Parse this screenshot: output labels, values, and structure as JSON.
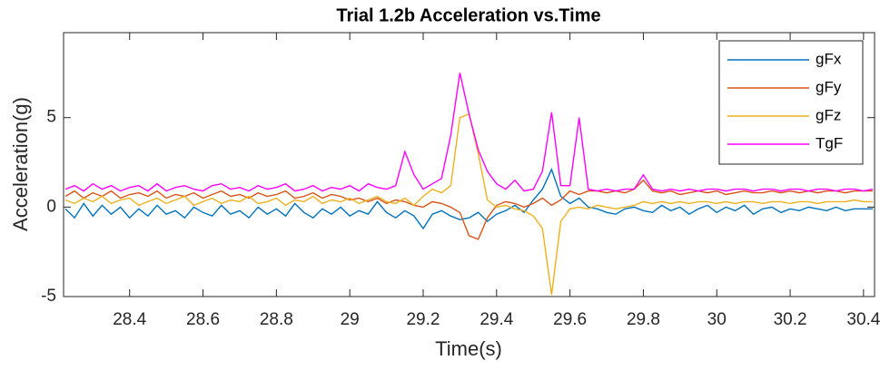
{
  "chart_data": {
    "type": "line",
    "title": "Trial 1.2b Acceleration vs.Time",
    "x_label": "Time(s)",
    "y_label": "Acceleration(g)",
    "x": [
      28.225,
      28.25,
      28.275,
      28.3,
      28.325,
      28.35,
      28.375,
      28.4,
      28.425,
      28.45,
      28.475,
      28.5,
      28.525,
      28.55,
      28.575,
      28.6,
      28.625,
      28.65,
      28.675,
      28.7,
      28.725,
      28.75,
      28.775,
      28.8,
      28.825,
      28.85,
      28.875,
      28.9,
      28.925,
      28.95,
      28.975,
      29,
      29.025,
      29.05,
      29.075,
      29.1,
      29.125,
      29.15,
      29.175,
      29.2,
      29.225,
      29.25,
      29.275,
      29.3,
      29.325,
      29.35,
      29.375,
      29.4,
      29.425,
      29.45,
      29.475,
      29.5,
      29.525,
      29.55,
      29.575,
      29.6,
      29.625,
      29.65,
      29.675,
      29.7,
      29.725,
      29.75,
      29.775,
      29.8,
      29.825,
      29.85,
      29.875,
      29.9,
      29.925,
      29.95,
      29.975,
      30,
      30.025,
      30.05,
      30.075,
      30.1,
      30.125,
      30.15,
      30.175,
      30.2,
      30.225,
      30.25,
      30.275,
      30.3,
      30.325,
      30.35,
      30.375,
      30.4,
      30.425
    ],
    "series": [
      {
        "name": "gFx",
        "color": "#0072bd",
        "values": [
          -0.1,
          -0.6,
          0.2,
          -0.5,
          0.1,
          -0.4,
          0.0,
          -0.6,
          -0.1,
          -0.5,
          0.1,
          -0.4,
          -0.2,
          -0.6,
          0.0,
          -0.3,
          -0.5,
          0.1,
          -0.4,
          -0.2,
          -0.6,
          0.0,
          -0.4,
          -0.1,
          -0.5,
          0.2,
          -0.3,
          -0.6,
          -0.1,
          -0.4,
          0.0,
          -0.5,
          -0.2,
          -0.4,
          0.3,
          -0.3,
          -0.6,
          -0.2,
          -0.5,
          -1.2,
          -0.4,
          -0.2,
          -0.5,
          -0.7,
          -0.6,
          -0.3,
          -0.8,
          -0.4,
          -0.2,
          0.1,
          -0.3,
          0.4,
          1.0,
          2.1,
          0.6,
          0.2,
          0.5,
          0.0,
          -0.1,
          -0.3,
          -0.4,
          -0.1,
          0.0,
          -0.2,
          -0.3,
          0.1,
          -0.2,
          0.0,
          -0.4,
          -0.1,
          0.1,
          -0.3,
          0.0,
          -0.2,
          0.1,
          -0.4,
          -0.1,
          0.0,
          -0.3,
          -0.1,
          -0.2,
          0.0,
          -0.1,
          -0.2,
          0.0,
          -0.2,
          -0.1,
          -0.1,
          -0.1
        ]
      },
      {
        "name": "gFy",
        "color": "#d95319",
        "values": [
          0.6,
          0.9,
          0.5,
          0.8,
          0.6,
          0.9,
          0.5,
          0.7,
          0.8,
          0.6,
          0.9,
          0.5,
          0.7,
          0.6,
          0.8,
          0.5,
          0.7,
          0.9,
          0.6,
          0.7,
          0.5,
          0.8,
          0.6,
          0.7,
          0.9,
          0.5,
          0.6,
          0.8,
          0.5,
          0.7,
          0.6,
          0.4,
          0.5,
          0.3,
          0.5,
          0.2,
          0.4,
          0.3,
          0.1,
          0.0,
          0.3,
          0.2,
          0.0,
          -0.3,
          -1.6,
          -1.8,
          -0.6,
          0.1,
          0.3,
          0.2,
          0.0,
          0.2,
          0.5,
          0.1,
          0.4,
          0.9,
          0.7,
          0.9,
          0.9,
          0.8,
          0.9,
          0.8,
          1.0,
          1.5,
          0.9,
          0.8,
          0.9,
          0.7,
          0.8,
          0.9,
          0.8,
          0.9,
          0.7,
          0.8,
          0.9,
          0.8,
          0.8,
          0.9,
          0.8,
          0.9,
          0.8,
          0.9,
          0.8,
          0.9,
          0.9,
          0.8,
          0.9,
          0.9,
          0.9
        ]
      },
      {
        "name": "gFz",
        "color": "#edb120",
        "values": [
          0.4,
          0.2,
          0.5,
          0.3,
          0.6,
          0.2,
          0.4,
          0.5,
          0.1,
          0.3,
          0.5,
          0.2,
          0.4,
          0.6,
          0.1,
          0.3,
          0.5,
          0.2,
          0.4,
          0.3,
          0.6,
          0.2,
          0.3,
          0.5,
          0.1,
          0.4,
          0.3,
          0.6,
          0.2,
          0.4,
          0.3,
          0.5,
          0.2,
          0.4,
          0.6,
          0.3,
          0.2,
          0.5,
          0.1,
          0.6,
          1.0,
          0.8,
          1.2,
          5.0,
          5.2,
          3.0,
          0.4,
          0.0,
          0.1,
          -0.1,
          -0.2,
          -0.5,
          -1.2,
          -4.9,
          -0.8,
          -0.1,
          0.0,
          -0.1,
          0.1,
          0.0,
          -0.1,
          0.0,
          0.1,
          0.3,
          0.2,
          0.3,
          0.2,
          0.3,
          0.2,
          0.3,
          0.3,
          0.2,
          0.3,
          0.2,
          0.3,
          0.3,
          0.2,
          0.3,
          0.3,
          0.2,
          0.3,
          0.3,
          0.2,
          0.3,
          0.3,
          0.3,
          0.4,
          0.3,
          0.3
        ]
      },
      {
        "name": "TgF",
        "color": "#ff00ff",
        "values": [
          1.0,
          1.2,
          0.9,
          1.3,
          1.0,
          1.2,
          0.9,
          1.1,
          1.2,
          0.9,
          1.3,
          0.9,
          1.1,
          1.2,
          1.0,
          0.9,
          1.2,
          1.3,
          1.0,
          1.1,
          0.9,
          1.2,
          1.0,
          1.1,
          1.3,
          0.9,
          1.0,
          1.2,
          0.9,
          1.1,
          1.0,
          1.2,
          0.9,
          1.3,
          1.1,
          1.0,
          1.2,
          3.1,
          1.8,
          1.0,
          1.3,
          1.6,
          4.0,
          7.5,
          5.2,
          3.2,
          2.0,
          1.3,
          1.0,
          1.5,
          0.9,
          1.0,
          2.0,
          5.3,
          1.2,
          1.2,
          5.0,
          1.0,
          0.9,
          1.0,
          0.9,
          1.0,
          1.0,
          1.8,
          1.0,
          0.9,
          1.0,
          0.9,
          1.0,
          0.9,
          1.0,
          1.0,
          0.9,
          1.0,
          1.0,
          0.9,
          1.0,
          1.0,
          0.9,
          1.0,
          1.0,
          0.9,
          1.0,
          1.0,
          0.9,
          1.0,
          1.0,
          0.9,
          1.0
        ]
      }
    ],
    "xlim": [
      28.22,
      30.43
    ],
    "ylim": [
      -5,
      9.75
    ],
    "xticks": [
      28.4,
      28.6,
      28.8,
      29,
      29.2,
      29.4,
      29.6,
      29.8,
      30,
      30.2,
      30.4
    ],
    "yticks": [
      -5,
      0,
      5
    ],
    "grid": false,
    "legend": "northeast"
  }
}
